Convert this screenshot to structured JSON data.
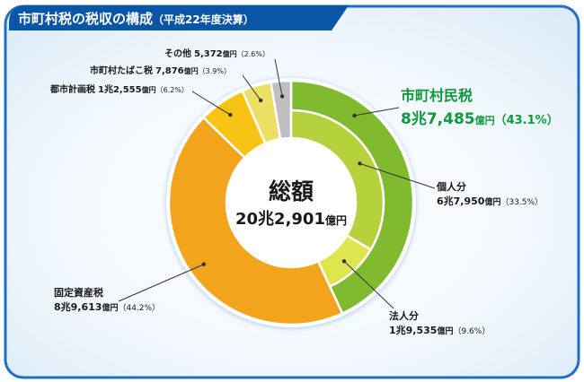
{
  "header": {
    "title": "市町村税の税収の構成",
    "subtitle": "（平成22年度決算）"
  },
  "center": {
    "label": "総額",
    "total": "20兆2,901",
    "unit": "億円"
  },
  "colors": {
    "header_bg": "#0a55a6",
    "panel_border": "#1f6fc7",
    "panel_bg": "#e9f4fc",
    "resident_tax_label": "#0d9a3c"
  },
  "chart_data": {
    "type": "pie",
    "total_oku_yen": 202901,
    "outer_ring": [
      {
        "name": "市町村民税",
        "amount": "8兆7,485",
        "unit": "億円",
        "value_oku_yen": 87485,
        "percent": 43.1,
        "percent_label": "（43.1%）",
        "color": "#7fba2f"
      },
      {
        "name": "固定資産税",
        "amount": "8兆9,613",
        "unit": "億円",
        "value_oku_yen": 89613,
        "percent": 44.2,
        "percent_label": "（44.2%）",
        "color": "#f2a41d"
      },
      {
        "name": "都市計画税",
        "amount": "1兆2,555",
        "unit": "億円",
        "value_oku_yen": 12555,
        "percent": 6.2,
        "percent_label": "（6.2%）",
        "color": "#f7c314"
      },
      {
        "name": "市町村たばこ税",
        "amount": "7,876",
        "unit": "億円",
        "value_oku_yen": 7876,
        "percent": 3.9,
        "percent_label": "（3.9%）",
        "color": "#ece064"
      },
      {
        "name": "その他",
        "amount": "5,372",
        "unit": "億円",
        "value_oku_yen": 5372,
        "percent": 2.6,
        "percent_label": "（2.6%）",
        "color": "#bfbfbf"
      }
    ],
    "inner_ring": [
      {
        "name": "個人分",
        "amount": "6兆7,950",
        "unit": "億円",
        "value_oku_yen": 67950,
        "percent": 33.5,
        "percent_label": "（33.5%）",
        "color": "#b5d23d"
      },
      {
        "name": "法人分",
        "amount": "1兆9,535",
        "unit": "億円",
        "value_oku_yen": 19535,
        "percent": 9.6,
        "percent_label": "（9.6%）",
        "color": "#dfe54c"
      }
    ]
  }
}
